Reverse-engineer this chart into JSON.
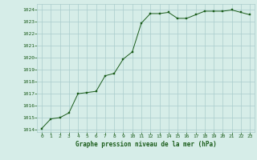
{
  "x": [
    0,
    1,
    2,
    3,
    4,
    5,
    6,
    7,
    8,
    9,
    10,
    11,
    12,
    13,
    14,
    15,
    16,
    17,
    18,
    19,
    20,
    21,
    22,
    23
  ],
  "y": [
    1014.1,
    1014.9,
    1015.0,
    1015.4,
    1017.0,
    1017.1,
    1017.2,
    1018.5,
    1018.7,
    1019.9,
    1020.5,
    1022.9,
    1023.7,
    1023.7,
    1023.8,
    1023.3,
    1023.3,
    1023.6,
    1023.9,
    1023.9,
    1023.9,
    1024.0,
    1023.8,
    1023.6
  ],
  "line_color": "#1a5c1a",
  "marker": "s",
  "marker_size": 1.8,
  "bg_color": "#d6ede8",
  "grid_color": "#aacccc",
  "xlabel": "Graphe pression niveau de la mer (hPa)",
  "xlabel_fontsize": 5.5,
  "yticks": [
    1014,
    1015,
    1016,
    1017,
    1018,
    1019,
    1020,
    1021,
    1022,
    1023,
    1024
  ],
  "xticks": [
    0,
    1,
    2,
    3,
    4,
    5,
    6,
    7,
    8,
    9,
    10,
    11,
    12,
    13,
    14,
    15,
    16,
    17,
    18,
    19,
    20,
    21,
    22,
    23
  ],
  "ylim": [
    1013.8,
    1024.5
  ],
  "xlim": [
    -0.5,
    23.5
  ],
  "tick_fontsize": 4.5,
  "tick_color": "#1a5c1a"
}
